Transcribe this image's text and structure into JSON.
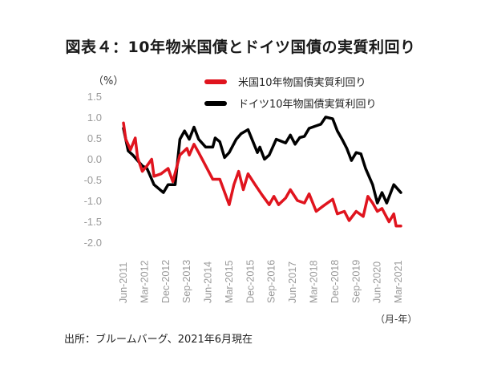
{
  "chart_data": {
    "type": "line",
    "title": "図表４：10年物米国債とドイツ国債の実質利回り",
    "ylabel": "（%）",
    "xlabel": "（月-年）",
    "x_unit": "months since Jun-2011",
    "xlim": [
      0,
      118
    ],
    "ylim": [
      -2.0,
      1.5
    ],
    "yticks": [
      "1.5",
      "1.0",
      "0.5",
      "0.0",
      "-0.5",
      "-1.0",
      "-1.5",
      "-2.0"
    ],
    "ytick_values": [
      1.5,
      1.0,
      0.5,
      0.0,
      -0.5,
      -1.0,
      -1.5,
      -2.0
    ],
    "xticks": [
      "Jun-2011",
      "Mar-2012",
      "Dec-2012",
      "Sep-2013",
      "Jun-2014",
      "Mar-2015",
      "Dec-2015",
      "Sep-2016",
      "Jun-2017",
      "Mar-2018",
      "Dec-2018",
      "Sep-2019",
      "Jun-2020",
      "Mar-2021"
    ],
    "xtick_values": [
      0,
      9,
      18,
      27,
      36,
      45,
      54,
      63,
      72,
      81,
      90,
      99,
      108,
      117
    ],
    "grid": false,
    "legend_position": "top-right",
    "series": [
      {
        "name": "米国10年物国債実質利回り",
        "color": "#e0141e",
        "x": [
          0,
          1,
          3,
          5,
          6,
          8,
          10,
          12,
          13,
          16,
          19,
          21,
          24,
          27,
          28,
          30,
          32,
          35,
          38,
          41,
          45,
          47,
          49,
          51,
          53,
          56,
          59,
          62,
          64,
          66,
          69,
          71,
          74,
          77,
          79,
          82,
          85,
          89,
          91,
          94,
          96,
          99,
          102,
          104,
          106,
          108,
          110,
          113,
          115,
          116,
          118
        ],
        "y": [
          0.86,
          0.47,
          0.22,
          0.5,
          0.03,
          -0.3,
          -0.17,
          -0.01,
          -0.42,
          -0.36,
          -0.23,
          -0.55,
          0.09,
          0.25,
          0.09,
          0.35,
          0.15,
          -0.17,
          -0.49,
          -0.49,
          -1.1,
          -0.62,
          -0.3,
          -0.74,
          -0.36,
          -0.62,
          -0.87,
          -1.1,
          -0.9,
          -1.1,
          -0.94,
          -0.74,
          -1.0,
          -1.06,
          -0.84,
          -1.26,
          -1.13,
          -0.97,
          -1.32,
          -1.26,
          -1.48,
          -1.26,
          -1.38,
          -0.9,
          -1.06,
          -1.26,
          -1.19,
          -1.51,
          -1.32,
          -1.61,
          -1.61
        ]
      },
      {
        "name": "ドイツ10年物国債実質利回り",
        "color": "#000000",
        "x": [
          0,
          2,
          4,
          8,
          10,
          11,
          13,
          17,
          19,
          22,
          24,
          26,
          28,
          30,
          32,
          35,
          38,
          39,
          41,
          43,
          45,
          48,
          50,
          53,
          57,
          58,
          60,
          62,
          65,
          69,
          71,
          73,
          75,
          77,
          79,
          82,
          84,
          86,
          89,
          91,
          93,
          95,
          97,
          99,
          101,
          103,
          106,
          108,
          110,
          112,
          115,
          118
        ],
        "y": [
          0.73,
          0.19,
          0.09,
          -0.17,
          -0.23,
          -0.36,
          -0.62,
          -0.81,
          -0.62,
          -0.62,
          0.47,
          0.67,
          0.47,
          0.76,
          0.47,
          0.28,
          0.28,
          0.5,
          0.41,
          0.03,
          0.15,
          0.47,
          0.6,
          0.7,
          0.15,
          0.28,
          -0.01,
          0.09,
          0.47,
          0.38,
          0.57,
          0.35,
          0.51,
          0.54,
          0.73,
          0.79,
          0.83,
          1.0,
          0.96,
          0.67,
          0.47,
          0.25,
          -0.04,
          0.15,
          0.12,
          -0.23,
          -0.62,
          -1.06,
          -0.81,
          -1.06,
          -0.62,
          -0.81
        ]
      }
    ],
    "source": "出所：ブルームバーグ、2021年6月現在"
  }
}
